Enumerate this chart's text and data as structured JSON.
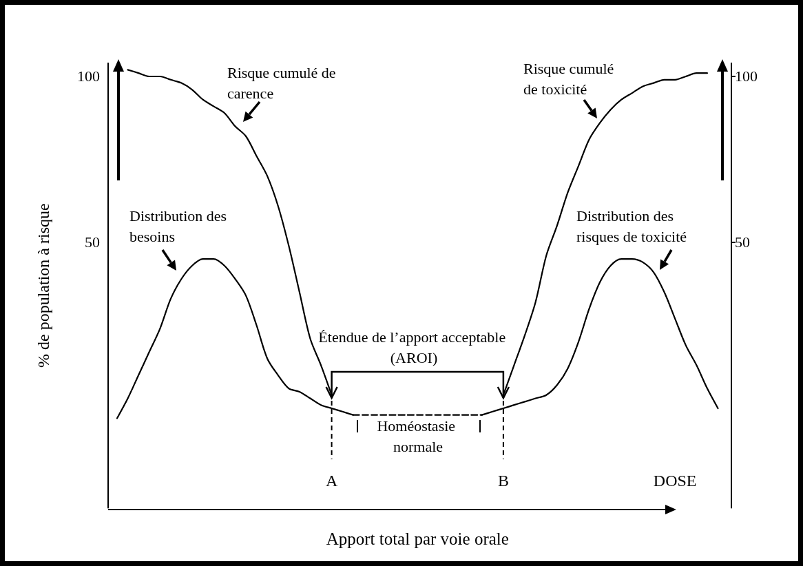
{
  "chart_data": {
    "type": "line",
    "ylabel": "% de population à risque",
    "xlabel": "Apport total par voie orale",
    "categories": [
      null,
      null,
      null,
      null,
      null,
      null,
      null,
      null,
      null,
      null,
      null,
      null,
      null,
      null,
      null,
      null,
      null,
      null,
      null,
      null,
      "A",
      null,
      null,
      null,
      null,
      null,
      null,
      null,
      null,
      null,
      null,
      null,
      null,
      null,
      null,
      null,
      "B",
      null,
      null,
      null,
      null,
      null,
      null,
      null,
      null,
      null,
      null,
      null,
      null,
      null,
      null,
      null,
      "DOSE",
      null,
      null,
      null,
      null
    ],
    "series": [
      {
        "name": "Risque cumulé de carence",
        "color": "#000000",
        "values": [
          null,
          102,
          101,
          100,
          100,
          99,
          98,
          96,
          93,
          91,
          89,
          85,
          82,
          76,
          70,
          61,
          49,
          35,
          21,
          13,
          4,
          null,
          null,
          null,
          null,
          null,
          null,
          null,
          null,
          null,
          null,
          null,
          null,
          null,
          null,
          null,
          null,
          null,
          null,
          null,
          null,
          null,
          null,
          null,
          null,
          null,
          null,
          null,
          null,
          null,
          null,
          null,
          null,
          null,
          null,
          null,
          null
        ]
      },
      {
        "name": "Distribution des besoins",
        "color": "#000000",
        "values": [
          -3,
          3,
          10,
          17,
          24,
          33,
          39,
          43,
          45,
          45,
          43,
          39,
          34,
          25,
          15,
          10,
          6,
          5,
          3,
          1,
          0,
          -1,
          -2,
          null,
          null,
          null,
          null,
          null,
          null,
          null,
          null,
          null,
          null,
          null,
          null,
          null,
          null,
          null,
          null,
          null,
          null,
          null,
          null,
          null,
          null,
          null,
          null,
          null,
          null,
          null,
          null,
          null,
          null,
          null,
          null,
          null,
          null
        ]
      },
      {
        "name": "Risque cumulé de toxicité",
        "color": "#000000",
        "values": [
          null,
          null,
          null,
          null,
          null,
          null,
          null,
          null,
          null,
          null,
          null,
          null,
          null,
          null,
          null,
          null,
          null,
          null,
          null,
          null,
          null,
          null,
          null,
          null,
          null,
          null,
          null,
          null,
          null,
          null,
          null,
          null,
          null,
          null,
          null,
          null,
          4,
          13,
          22,
          32,
          46,
          55,
          65,
          73,
          81,
          86,
          90,
          93,
          95,
          97,
          98,
          99,
          99,
          100,
          101,
          101,
          null
        ]
      },
      {
        "name": "Distribution des risques de toxicité",
        "color": "#000000",
        "values": [
          null,
          null,
          null,
          null,
          null,
          null,
          null,
          null,
          null,
          null,
          null,
          null,
          null,
          null,
          null,
          null,
          null,
          null,
          null,
          null,
          null,
          null,
          null,
          null,
          null,
          null,
          null,
          null,
          null,
          null,
          null,
          null,
          null,
          null,
          -2,
          -1,
          0,
          1,
          2,
          3,
          4,
          7,
          12,
          20,
          30,
          38,
          43,
          45,
          45,
          44,
          41,
          35,
          27,
          19,
          13,
          6,
          0
        ]
      },
      {
        "color": "#000000",
        "line_style": "dashed",
        "values": [
          null,
          null,
          null,
          null,
          null,
          null,
          null,
          null,
          null,
          null,
          null,
          null,
          null,
          null,
          null,
          null,
          null,
          null,
          null,
          null,
          null,
          null,
          -2,
          -2,
          -2,
          -2,
          -2,
          -2,
          -2,
          -2,
          -2,
          -2,
          -2,
          -2,
          -2,
          null,
          null,
          null,
          null,
          null,
          null,
          null,
          null,
          null,
          null,
          null,
          null,
          null,
          null,
          null,
          null,
          null,
          null,
          null,
          null,
          null,
          null
        ]
      }
    ],
    "ylim": [
      -30,
      104
    ],
    "yticks": [
      50,
      100
    ],
    "y2lim": [
      -30,
      104
    ],
    "y2ticks": [
      50,
      100
    ],
    "ref_lines": [
      {
        "axis": "x",
        "value": "A",
        "line_style": "dashed"
      },
      {
        "axis": "x",
        "value": "B",
        "line_style": "dashed"
      }
    ],
    "annotations": [
      "Étendue de l’apport acceptable (AROI)",
      "Homéostasie normale"
    ],
    "marker": "none",
    "line_style": "solid",
    "grid": false,
    "legend": false
  }
}
